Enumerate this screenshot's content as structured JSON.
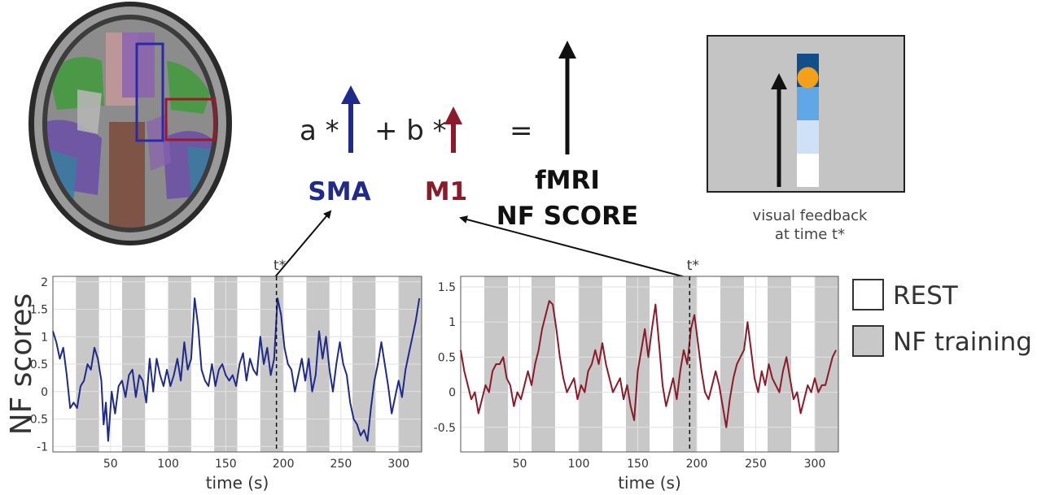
{
  "equation": {
    "coef_a": "a *",
    "plus_b": "+  b *",
    "equals": "=",
    "label_sma": "SMA",
    "label_m1": "M1",
    "label_fmri": "fMRI",
    "label_nf_score": "NF SCORE",
    "colors": {
      "sma": "#1f2a8a",
      "m1": "#8b1a2b",
      "black": "#111111"
    }
  },
  "feedback_panel": {
    "caption_line1": "visual feedback",
    "caption_line2": "at time t*",
    "background": "#c4c4c4",
    "thermometer_colors": [
      "#ffffff",
      "#cde2f7",
      "#5fa7e6",
      "#104e8c"
    ],
    "level_marker_color": "#f5a01a",
    "level_fraction": 0.82
  },
  "legend": {
    "items": [
      {
        "label": "REST",
        "fill": "#ffffff"
      },
      {
        "label": "NF training",
        "fill": "#c8c8c8"
      }
    ]
  },
  "y_axis_label": "NF scores",
  "chart_data": [
    {
      "type": "line",
      "name": "SMA",
      "color": "#1f2a8a",
      "xlabel": "time (s)",
      "ylabel": "NF scores",
      "xlim": [
        0,
        320
      ],
      "ylim": [
        -1.1,
        2.1
      ],
      "xticks": [
        50,
        100,
        150,
        200,
        250,
        300
      ],
      "yticks": [
        -1,
        -0.5,
        0,
        0.5,
        1,
        1.5,
        2
      ],
      "ytick_labels": [
        "-1",
        "-0.5",
        "0",
        "0.5",
        "1",
        "1.5",
        "2"
      ],
      "grid": true,
      "marker": {
        "label": "t*",
        "x": 194
      },
      "training_blocks": [
        [
          20,
          40
        ],
        [
          60,
          80
        ],
        [
          100,
          120
        ],
        [
          140,
          160
        ],
        [
          180,
          200
        ],
        [
          220,
          240
        ],
        [
          260,
          280
        ],
        [
          300,
          320
        ]
      ],
      "points": [
        [
          0,
          1.1
        ],
        [
          3,
          0.9
        ],
        [
          6,
          0.6
        ],
        [
          9,
          0.8
        ],
        [
          12,
          0.3
        ],
        [
          15,
          -0.3
        ],
        [
          18,
          -0.2
        ],
        [
          21,
          -0.3
        ],
        [
          24,
          0.1
        ],
        [
          27,
          0.2
        ],
        [
          30,
          0.5
        ],
        [
          33,
          0.4
        ],
        [
          36,
          0.8
        ],
        [
          39,
          0.6
        ],
        [
          42,
          0.2
        ],
        [
          44,
          -0.6
        ],
        [
          46,
          -0.2
        ],
        [
          48,
          -0.9
        ],
        [
          51,
          0.0
        ],
        [
          54,
          -0.4
        ],
        [
          57,
          0.1
        ],
        [
          60,
          0.2
        ],
        [
          63,
          -0.1
        ],
        [
          66,
          0.3
        ],
        [
          69,
          0.4
        ],
        [
          72,
          -0.1
        ],
        [
          75,
          0.3
        ],
        [
          78,
          0.2
        ],
        [
          81,
          -0.2
        ],
        [
          84,
          0.6
        ],
        [
          87,
          0.0
        ],
        [
          90,
          0.6
        ],
        [
          93,
          0.3
        ],
        [
          96,
          0.1
        ],
        [
          99,
          0.4
        ],
        [
          102,
          0.1
        ],
        [
          105,
          0.3
        ],
        [
          108,
          0.6
        ],
        [
          111,
          0.2
        ],
        [
          114,
          0.9
        ],
        [
          117,
          0.4
        ],
        [
          120,
          0.6
        ],
        [
          123,
          1.7
        ],
        [
          126,
          1.2
        ],
        [
          129,
          0.4
        ],
        [
          132,
          0.2
        ],
        [
          135,
          0.1
        ],
        [
          138,
          0.5
        ],
        [
          141,
          0.1
        ],
        [
          144,
          0.4
        ],
        [
          147,
          0.5
        ],
        [
          150,
          0.3
        ],
        [
          153,
          0.2
        ],
        [
          156,
          0.3
        ],
        [
          159,
          0.1
        ],
        [
          162,
          0.5
        ],
        [
          165,
          0.7
        ],
        [
          168,
          0.2
        ],
        [
          171,
          0.6
        ],
        [
          174,
          0.4
        ],
        [
          177,
          0.3
        ],
        [
          180,
          1.0
        ],
        [
          183,
          0.5
        ],
        [
          186,
          0.8
        ],
        [
          189,
          0.3
        ],
        [
          192,
          0.6
        ],
        [
          195,
          1.7
        ],
        [
          198,
          1.4
        ],
        [
          201,
          0.8
        ],
        [
          204,
          0.5
        ],
        [
          207,
          0.4
        ],
        [
          210,
          0.0
        ],
        [
          213,
          0.3
        ],
        [
          216,
          0.6
        ],
        [
          219,
          0.2
        ],
        [
          222,
          0.6
        ],
        [
          225,
          0.0
        ],
        [
          228,
          0.3
        ],
        [
          231,
          1.1
        ],
        [
          234,
          0.6
        ],
        [
          237,
          1.0
        ],
        [
          240,
          0.4
        ],
        [
          243,
          0.0
        ],
        [
          246,
          0.5
        ],
        [
          249,
          0.9
        ],
        [
          252,
          0.5
        ],
        [
          255,
          0.3
        ],
        [
          258,
          -0.2
        ],
        [
          261,
          -0.5
        ],
        [
          264,
          -0.6
        ],
        [
          267,
          -0.8
        ],
        [
          270,
          -0.7
        ],
        [
          273,
          -0.9
        ],
        [
          276,
          -0.3
        ],
        [
          279,
          0.2
        ],
        [
          282,
          0.5
        ],
        [
          285,
          0.9
        ],
        [
          288,
          0.5
        ],
        [
          291,
          0.1
        ],
        [
          294,
          -0.4
        ],
        [
          297,
          -0.1
        ],
        [
          300,
          0.2
        ],
        [
          303,
          -0.1
        ],
        [
          306,
          0.4
        ],
        [
          309,
          0.7
        ],
        [
          312,
          1.0
        ],
        [
          315,
          1.3
        ],
        [
          318,
          1.7
        ]
      ]
    },
    {
      "type": "line",
      "name": "M1",
      "color": "#8b1a2b",
      "xlabel": "time (s)",
      "ylabel": "",
      "xlim": [
        0,
        320
      ],
      "ylim": [
        -0.85,
        1.65
      ],
      "xticks": [
        50,
        100,
        150,
        200,
        250,
        300
      ],
      "yticks": [
        -0.5,
        0,
        0.5,
        1,
        1.5
      ],
      "ytick_labels": [
        "-0.5",
        "0",
        "0.5",
        "1",
        "1.5"
      ],
      "grid": true,
      "marker": {
        "label": "t*",
        "x": 194
      },
      "training_blocks": [
        [
          20,
          40
        ],
        [
          60,
          80
        ],
        [
          100,
          120
        ],
        [
          140,
          160
        ],
        [
          180,
          200
        ],
        [
          220,
          240
        ],
        [
          260,
          280
        ],
        [
          300,
          320
        ]
      ],
      "points": [
        [
          0,
          0.6
        ],
        [
          3,
          0.3
        ],
        [
          6,
          0.1
        ],
        [
          9,
          -0.1
        ],
        [
          12,
          0.0
        ],
        [
          15,
          -0.3
        ],
        [
          18,
          -0.1
        ],
        [
          21,
          0.1
        ],
        [
          24,
          0.0
        ],
        [
          27,
          0.3
        ],
        [
          30,
          0.4
        ],
        [
          33,
          0.4
        ],
        [
          36,
          0.5
        ],
        [
          39,
          0.2
        ],
        [
          42,
          0.1
        ],
        [
          45,
          -0.2
        ],
        [
          48,
          0.0
        ],
        [
          51,
          -0.1
        ],
        [
          54,
          0.1
        ],
        [
          57,
          0.3
        ],
        [
          60,
          0.1
        ],
        [
          63,
          0.4
        ],
        [
          66,
          0.6
        ],
        [
          69,
          0.9
        ],
        [
          72,
          1.1
        ],
        [
          75,
          1.3
        ],
        [
          78,
          1.25
        ],
        [
          81,
          0.9
        ],
        [
          84,
          0.5
        ],
        [
          87,
          0.2
        ],
        [
          90,
          0.0
        ],
        [
          93,
          0.1
        ],
        [
          96,
          0.2
        ],
        [
          99,
          -0.1
        ],
        [
          102,
          0.1
        ],
        [
          105,
          0.0
        ],
        [
          108,
          0.3
        ],
        [
          111,
          0.4
        ],
        [
          114,
          0.6
        ],
        [
          117,
          0.4
        ],
        [
          120,
          0.7
        ],
        [
          123,
          0.4
        ],
        [
          126,
          0.2
        ],
        [
          129,
          0.0
        ],
        [
          132,
          0.1
        ],
        [
          135,
          0.2
        ],
        [
          138,
          -0.1
        ],
        [
          141,
          0.1
        ],
        [
          144,
          -0.2
        ],
        [
          147,
          -0.4
        ],
        [
          150,
          0.3
        ],
        [
          153,
          0.6
        ],
        [
          156,
          0.9
        ],
        [
          159,
          0.5
        ],
        [
          162,
          0.9
        ],
        [
          165,
          1.25
        ],
        [
          168,
          0.7
        ],
        [
          171,
          0.1
        ],
        [
          174,
          -0.2
        ],
        [
          177,
          0.0
        ],
        [
          180,
          0.2
        ],
        [
          183,
          -0.1
        ],
        [
          186,
          0.3
        ],
        [
          189,
          0.6
        ],
        [
          192,
          0.4
        ],
        [
          195,
          0.9
        ],
        [
          198,
          1.1
        ],
        [
          201,
          0.7
        ],
        [
          204,
          0.3
        ],
        [
          207,
          0.0
        ],
        [
          210,
          -0.1
        ],
        [
          213,
          0.1
        ],
        [
          216,
          0.3
        ],
        [
          219,
          0.1
        ],
        [
          222,
          -0.2
        ],
        [
          225,
          -0.5
        ],
        [
          228,
          -0.1
        ],
        [
          231,
          0.2
        ],
        [
          234,
          0.4
        ],
        [
          237,
          0.5
        ],
        [
          240,
          0.6
        ],
        [
          243,
          1.0
        ],
        [
          246,
          0.6
        ],
        [
          249,
          0.2
        ],
        [
          252,
          0.0
        ],
        [
          255,
          0.3
        ],
        [
          258,
          0.1
        ],
        [
          261,
          0.4
        ],
        [
          264,
          0.2
        ],
        [
          267,
          0.1
        ],
        [
          270,
          0.0
        ],
        [
          273,
          0.3
        ],
        [
          276,
          0.5
        ],
        [
          279,
          0.2
        ],
        [
          282,
          -0.1
        ],
        [
          285,
          0.0
        ],
        [
          288,
          -0.3
        ],
        [
          291,
          -0.1
        ],
        [
          294,
          0.1
        ],
        [
          297,
          0.0
        ],
        [
          300,
          0.2
        ],
        [
          303,
          0.0
        ],
        [
          306,
          0.1
        ],
        [
          309,
          0.1
        ],
        [
          312,
          0.3
        ],
        [
          315,
          0.5
        ],
        [
          318,
          0.6
        ]
      ]
    }
  ]
}
